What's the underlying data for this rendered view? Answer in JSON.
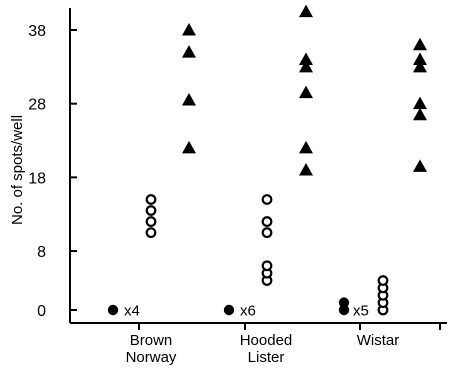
{
  "chart_data": {
    "type": "scatter",
    "title": "",
    "xlabel": "",
    "ylabel": "No. of spots/well",
    "ylim": [
      -2,
      42
    ],
    "yticks": [
      0,
      8,
      18,
      28,
      38
    ],
    "grid": false,
    "legend": "none",
    "categories": [
      {
        "line1": "Brown",
        "line2": "Norway"
      },
      {
        "line1": "Hooded",
        "line2": "Lister"
      },
      {
        "line1": "Wistar",
        "line2": ""
      }
    ],
    "groups": [
      {
        "category": 0,
        "filled_circles": [
          0
        ],
        "multiplier": "x4",
        "open_circles": [
          10.5,
          12,
          13.5,
          15
        ],
        "triangles": [
          38,
          35,
          28.5,
          22
        ]
      },
      {
        "category": 1,
        "filled_circles": [
          0
        ],
        "multiplier": "x6",
        "open_circles": [
          4,
          5,
          6,
          10.5,
          12,
          15
        ],
        "triangles": [
          40.5,
          34,
          33,
          29.5,
          22,
          19
        ]
      },
      {
        "category": 2,
        "filled_circles": [
          0,
          1
        ],
        "multiplier": "x5",
        "open_circles": [
          0,
          1,
          2,
          3,
          4
        ],
        "triangles": [
          36,
          34,
          33,
          28,
          26.5,
          19.5
        ]
      }
    ]
  }
}
